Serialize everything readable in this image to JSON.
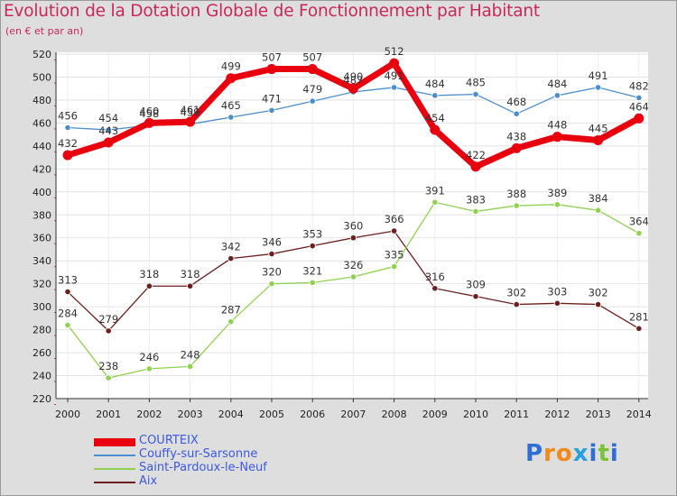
{
  "header": {
    "title": "Evolution de la Dotation Globale de Fonctionnement par Habitant",
    "subtitle": "(en € et par an)"
  },
  "brand": {
    "letters": [
      "P",
      "r",
      "o",
      "x",
      "i",
      "t",
      "i"
    ],
    "colors": [
      "#2e6fd6",
      "#f08a1c",
      "#f08a1c",
      "#27a0dc",
      "#2e6fd6",
      "#7bc23a",
      "#2e6fd6"
    ]
  },
  "chart_data": {
    "type": "line",
    "title": "Evolution de la Dotation Globale de Fonctionnement par Habitant",
    "xlabel": "",
    "ylabel": "",
    "categories": [
      "2000",
      "2001",
      "2002",
      "2003",
      "2004",
      "2005",
      "2006",
      "2007",
      "2008",
      "2009",
      "2010",
      "2011",
      "2012",
      "2013",
      "2014"
    ],
    "yticks": [
      "220",
      "240",
      "260",
      "280",
      "300",
      "320",
      "340",
      "360",
      "380",
      "400",
      "420",
      "440",
      "460",
      "480",
      "500",
      "520"
    ],
    "ylim": [
      220,
      520
    ],
    "grid": true,
    "legend_position": "bottom-left",
    "series": [
      {
        "name": "COURTEIX",
        "color": "#e8000f",
        "values": [
          432,
          443,
          460,
          461,
          499,
          507,
          507,
          490,
          512,
          454,
          422,
          438,
          448,
          445,
          464
        ],
        "labels": [
          "432",
          "443",
          "460",
          "461",
          "499",
          "507",
          "507",
          "490",
          "512",
          "454",
          "422",
          "438",
          "448",
          "445",
          "464"
        ]
      },
      {
        "name": "Couffy-sur-Sarsonne",
        "color": "#4a8ed0",
        "values": [
          456,
          454,
          458,
          459,
          465,
          471,
          479,
          487,
          491,
          484,
          485,
          468,
          484,
          491,
          482
        ],
        "labels": [
          "456",
          "454",
          "458",
          "459",
          "465",
          "471",
          "479",
          "487",
          "491",
          "484",
          "485",
          "468",
          "484",
          "491",
          "482"
        ]
      },
      {
        "name": "Saint-Pardoux-le-Neuf",
        "color": "#8ed24e",
        "values": [
          284,
          238,
          246,
          248,
          287,
          320,
          321,
          326,
          335,
          391,
          383,
          388,
          389,
          384,
          364
        ],
        "labels": [
          "284",
          "238",
          "246",
          "248",
          "287",
          "320",
          "321",
          "326",
          "335",
          "391",
          "383",
          "388",
          "389",
          "384",
          "364"
        ]
      },
      {
        "name": "Aix",
        "color": "#6e1e1e",
        "values": [
          313,
          279,
          318,
          318,
          342,
          346,
          353,
          360,
          366,
          316,
          309,
          302,
          303,
          302,
          281
        ],
        "labels": [
          "313",
          "279",
          "318",
          "318",
          "342",
          "346",
          "353",
          "360",
          "366",
          "316",
          "309",
          "302",
          "303",
          "302",
          "281"
        ]
      }
    ]
  }
}
